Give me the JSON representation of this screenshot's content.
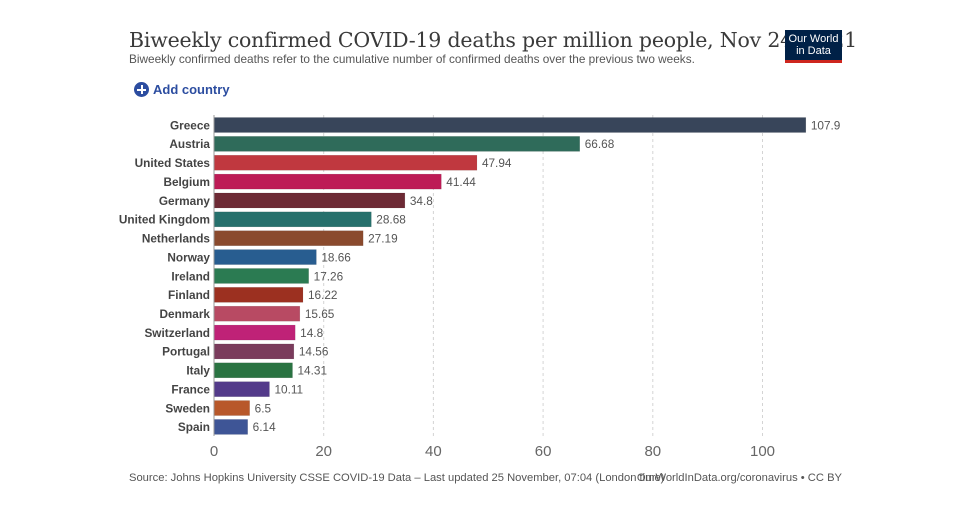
{
  "header": {
    "title": "Biweekly confirmed COVID-19 deaths per million people, Nov 24, 2021",
    "subtitle": "Biweekly confirmed deaths refer to the cumulative number of confirmed deaths over the previous two weeks.",
    "logo_line1": "Our World",
    "logo_line2": "in Data",
    "logo_colors": {
      "background": "#002147",
      "underline": "#ce261e"
    }
  },
  "controls": {
    "add_country_label": "Add country",
    "add_country_icon": "plus-circle-icon",
    "accent": "#2c4da0"
  },
  "footer": {
    "source": "Source: Johns Hopkins University CSSE COVID-19 Data – Last updated 25 November, 07:04 (London time)",
    "link": "OurWorldInData.org/coronavirus • CC BY"
  },
  "chart_data": {
    "type": "bar",
    "orientation": "horizontal",
    "title": "Biweekly confirmed COVID-19 deaths per million people, Nov 24, 2021",
    "xlabel": "",
    "ylabel": "",
    "xlim": [
      0,
      110
    ],
    "xticks": [
      0,
      20,
      40,
      60,
      80,
      100
    ],
    "grid": "vertical-dashed",
    "categories": [
      "Greece",
      "Austria",
      "United States",
      "Belgium",
      "Germany",
      "United Kingdom",
      "Netherlands",
      "Norway",
      "Ireland",
      "Finland",
      "Denmark",
      "Switzerland",
      "Portugal",
      "Italy",
      "France",
      "Sweden",
      "Spain"
    ],
    "values": [
      107.9,
      66.68,
      47.94,
      41.44,
      34.8,
      28.68,
      27.19,
      18.66,
      17.26,
      16.22,
      15.65,
      14.8,
      14.56,
      14.31,
      10.11,
      6.5,
      6.14
    ],
    "labels": [
      "107.9",
      "66.68",
      "47.94",
      "41.44",
      "34.8",
      "28.68",
      "27.19",
      "18.66",
      "17.26",
      "16.22",
      "15.65",
      "14.8",
      "14.56",
      "14.31",
      "10.11",
      "6.5",
      "6.14"
    ],
    "colors": [
      "#38455a",
      "#2f6b5a",
      "#c0383f",
      "#bd1b56",
      "#6d2a35",
      "#26706c",
      "#8a4a2d",
      "#285d90",
      "#2b7b52",
      "#9c3020",
      "#b84a63",
      "#bf2277",
      "#7a3b5c",
      "#2a7342",
      "#533a8a",
      "#b8582a",
      "#3e5596"
    ]
  }
}
